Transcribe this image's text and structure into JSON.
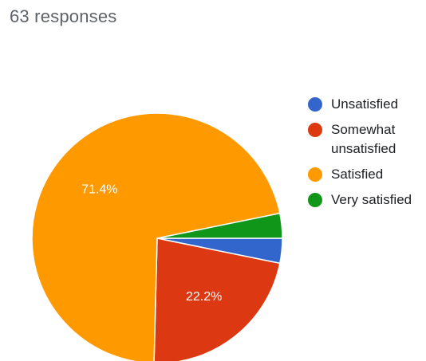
{
  "header": {
    "responses_label": "63 responses"
  },
  "chart_data": {
    "type": "pie",
    "legend_position": "right",
    "slices": [
      {
        "label": "Unsatisfied",
        "value": 3.2,
        "color": "#3366cc",
        "data_label": ""
      },
      {
        "label": "Somewhat unsatisfied",
        "value": 22.2,
        "color": "#dc3912",
        "data_label": "22.2%"
      },
      {
        "label": "Satisfied",
        "value": 71.4,
        "color": "#ff9900",
        "data_label": "71.4%"
      },
      {
        "label": "Very satisfied",
        "value": 3.2,
        "color": "#109618",
        "data_label": ""
      }
    ]
  }
}
